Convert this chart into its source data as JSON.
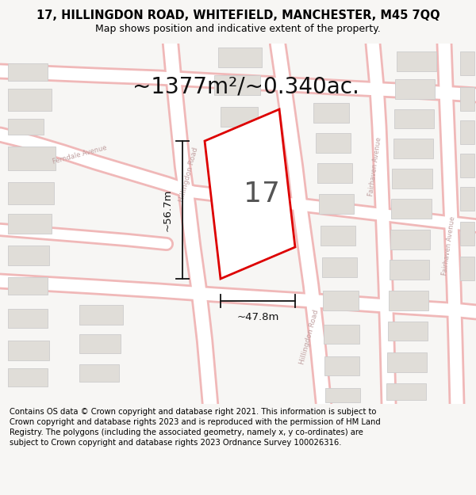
{
  "title_line1": "17, HILLINGDON ROAD, WHITEFIELD, MANCHESTER, M45 7QQ",
  "title_line2": "Map shows position and indicative extent of the property.",
  "area_text": "~1377m²/~0.340ac.",
  "property_number": "17",
  "dim_width": "~47.8m",
  "dim_height": "~56.7m",
  "footer_text": "Contains OS data © Crown copyright and database right 2021. This information is subject to Crown copyright and database rights 2023 and is reproduced with the permission of HM Land Registry. The polygons (including the associated geometry, namely x, y co-ordinates) are subject to Crown copyright and database rights 2023 Ordnance Survey 100026316.",
  "bg_color": "#f7f6f4",
  "map_bg": "#f7f6f4",
  "road_color": "#ffffff",
  "road_outline": "#f0b8b8",
  "plot_outline_color": "#dd0000",
  "building_fill": "#e0ddd8",
  "building_outline": "#cccccc",
  "dim_line_color": "#111111",
  "title_fontsize": 10.5,
  "subtitle_fontsize": 9,
  "area_fontsize": 20,
  "number_fontsize": 26,
  "footer_fontsize": 7.2,
  "road_label_color": "#c0a0a0",
  "road_label_size": 6.5
}
